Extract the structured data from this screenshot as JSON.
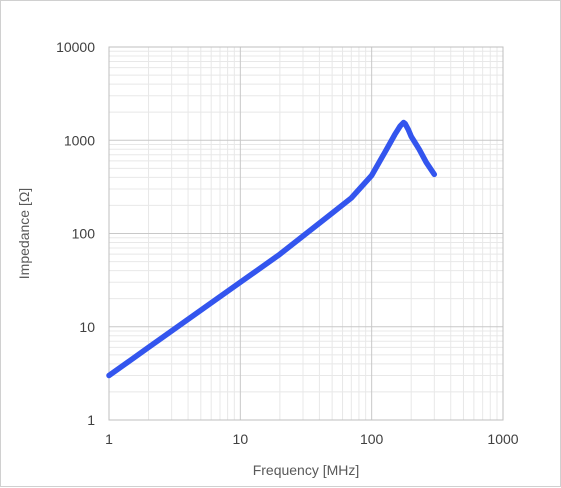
{
  "chart_data": {
    "type": "line",
    "title": "",
    "xlabel": "Frequency [MHz]",
    "ylabel": "Impedance  [Ω]",
    "xscale": "log",
    "yscale": "log",
    "xlim": [
      1,
      1000
    ],
    "ylim": [
      1,
      10000
    ],
    "grid": true,
    "legend": "none",
    "x_ticks": [
      "1",
      "10",
      "100",
      "1000"
    ],
    "y_ticks": [
      "10000",
      "1000",
      "100",
      "10",
      "1"
    ],
    "series": [
      {
        "color": "#3355ee",
        "x": [
          1,
          2,
          5,
          10,
          20,
          50,
          70,
          100,
          130,
          150,
          165,
          175,
          180,
          190,
          200,
          230,
          260,
          300
        ],
        "y": [
          3,
          6,
          15,
          30,
          60,
          165,
          240,
          420,
          800,
          1150,
          1420,
          1550,
          1500,
          1300,
          1100,
          800,
          580,
          430
        ]
      }
    ]
  }
}
